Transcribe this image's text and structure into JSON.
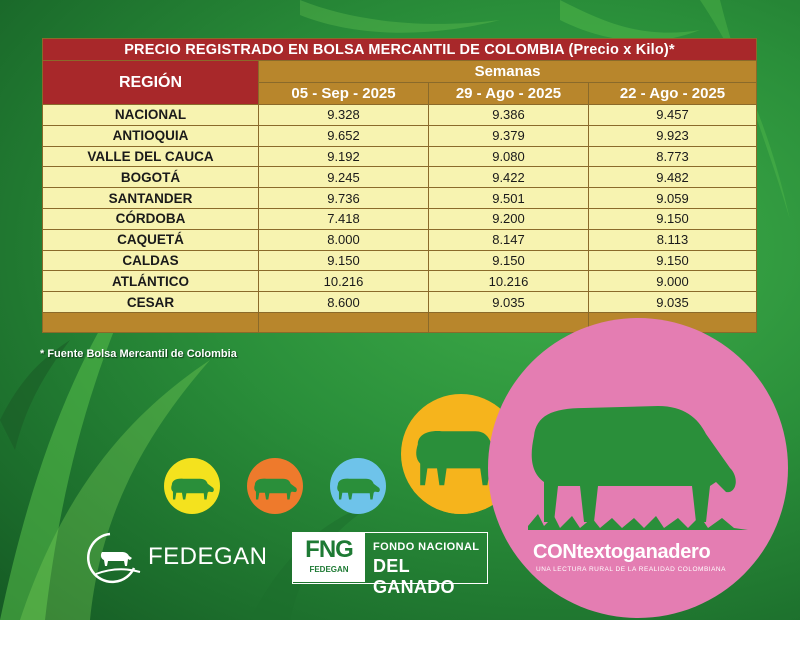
{
  "table": {
    "title": "PRECIO REGISTRADO EN BOLSA MERCANTIL DE COLOMBIA (Precio x Kilo)*",
    "region_header": "REGIÓN",
    "weeks_header": "Semanas",
    "date_headers": [
      "05 - Sep - 2025",
      "29 - Ago - 2025",
      "22 - Ago - 2025"
    ],
    "rows": [
      {
        "region": "NACIONAL",
        "values": [
          "9.328",
          "9.386",
          "9.457"
        ]
      },
      {
        "region": "ANTIOQUIA",
        "values": [
          "9.652",
          "9.379",
          "9.923"
        ]
      },
      {
        "region": "VALLE DEL CAUCA",
        "values": [
          "9.192",
          "9.080",
          "8.773"
        ]
      },
      {
        "region": "BOGOTÁ",
        "values": [
          "9.245",
          "9.422",
          "9.482"
        ]
      },
      {
        "region": "SANTANDER",
        "values": [
          "9.736",
          "9.501",
          "9.059"
        ]
      },
      {
        "region": "CÓRDOBA",
        "values": [
          "7.418",
          "9.200",
          "9.150"
        ]
      },
      {
        "region": "CAQUETÁ",
        "values": [
          "8.000",
          "8.147",
          "8.113"
        ]
      },
      {
        "region": "CALDAS",
        "values": [
          "9.150",
          "9.150",
          "9.150"
        ]
      },
      {
        "region": "ATLÁNTICO",
        "values": [
          "10.216",
          "10.216",
          "9.000"
        ]
      },
      {
        "region": "CESAR",
        "values": [
          "8.600",
          "9.035",
          "9.035"
        ]
      }
    ]
  },
  "source_note": "* Fuente Bolsa Mercantil de Colombia",
  "logos": {
    "fedegan": "FEDEGAN",
    "fng_mark": "FNG",
    "fng_mark_sub": "FEDEGAN",
    "fng_line1": "FONDO NACIONAL",
    "fng_line2": "DEL GANADO",
    "contexto_name": "CONtextoganadero",
    "contexto_tagline": "UNA LECTURA RURAL DE LA REALIDAD COLOMBIANA"
  },
  "colors": {
    "background_green": "#2a8f3a",
    "header_red": "#a8282a",
    "header_gold": "#b8862c",
    "row_yellow": "#f7f3b0",
    "circle_yellow": "#f4e21e",
    "circle_orange": "#ee7a2c",
    "circle_blue": "#6ec3ea",
    "circle_gold": "#f6b41c",
    "circle_pink": "#e47db2",
    "cow_green": "#2a8f3a"
  },
  "icons": [
    "cow-icon",
    "fedegan-cow-icon"
  ]
}
